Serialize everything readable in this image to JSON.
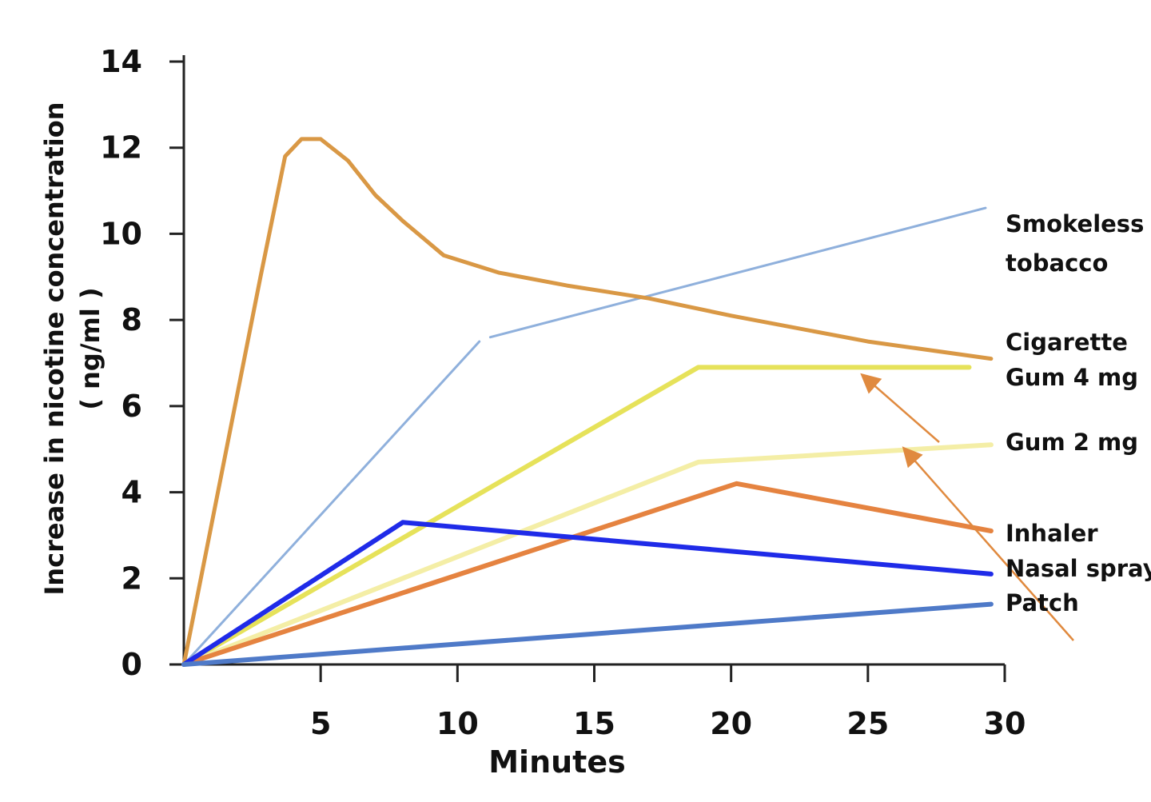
{
  "chart_data": {
    "type": "line",
    "title": "",
    "xlabel": "Minutes",
    "ylabel": "Increase in nicotine concentration",
    "ylabel_unit": "( ng/ml )",
    "xlim": [
      0,
      30
    ],
    "ylim": [
      0,
      14
    ],
    "x_ticks": [
      5,
      10,
      15,
      20,
      25,
      30
    ],
    "y_ticks": [
      0,
      2,
      4,
      6,
      8,
      10,
      12,
      14
    ],
    "grid": false,
    "series": [
      {
        "name": "Smokeless tobacco",
        "label_lines": [
          "Smokeless",
          "tobacco"
        ],
        "color": "#8fb0dc",
        "width": 3,
        "segments": [
          [
            [
              0,
              0
            ],
            [
              10.8,
              7.5
            ]
          ],
          [
            [
              11.2,
              7.6
            ],
            [
              29.3,
              10.6
            ]
          ]
        ]
      },
      {
        "name": "Cigarette",
        "label_lines": [
          "Cigarette"
        ],
        "color": "#d99845",
        "width": 5,
        "points": [
          [
            0,
            0
          ],
          [
            2.8,
            9.0
          ],
          [
            3.7,
            11.8
          ],
          [
            4.3,
            12.2
          ],
          [
            5.0,
            12.2
          ],
          [
            6.0,
            11.7
          ],
          [
            7.0,
            10.9
          ],
          [
            8.0,
            10.3
          ],
          [
            9.5,
            9.5
          ],
          [
            11.5,
            9.1
          ],
          [
            14.0,
            8.8
          ],
          [
            17.0,
            8.5
          ],
          [
            20.0,
            8.1
          ],
          [
            25.0,
            7.5
          ],
          [
            29.5,
            7.1
          ]
        ]
      },
      {
        "name": "Gum 4 mg",
        "label_lines": [
          "Gum 4 mg"
        ],
        "color": "#e6e25a",
        "width": 6,
        "points": [
          [
            0,
            0
          ],
          [
            18.8,
            6.9
          ],
          [
            28.7,
            6.9
          ]
        ]
      },
      {
        "name": "Gum 2 mg",
        "label_lines": [
          "Gum 2 mg"
        ],
        "color": "#f4eea6",
        "width": 6,
        "points": [
          [
            0,
            0
          ],
          [
            18.8,
            4.7
          ],
          [
            29.5,
            5.1
          ]
        ]
      },
      {
        "name": "Inhaler",
        "label_lines": [
          "Inhaler"
        ],
        "color": "#e58340",
        "width": 6,
        "points": [
          [
            0,
            0
          ],
          [
            20.2,
            4.2
          ],
          [
            29.5,
            3.1
          ]
        ]
      },
      {
        "name": "Nasal spray",
        "label_lines": [
          "Nasal spray"
        ],
        "color": "#1f2be8",
        "width": 6,
        "points": [
          [
            0,
            0
          ],
          [
            8.0,
            3.3
          ],
          [
            29.5,
            2.1
          ]
        ]
      },
      {
        "name": "Patch",
        "label_lines": [
          "Patch"
        ],
        "color": "#4f7ac8",
        "width": 6,
        "points": [
          [
            0,
            0
          ],
          [
            29.5,
            1.4
          ]
        ]
      }
    ],
    "arrow_color": "#e08a3f"
  }
}
